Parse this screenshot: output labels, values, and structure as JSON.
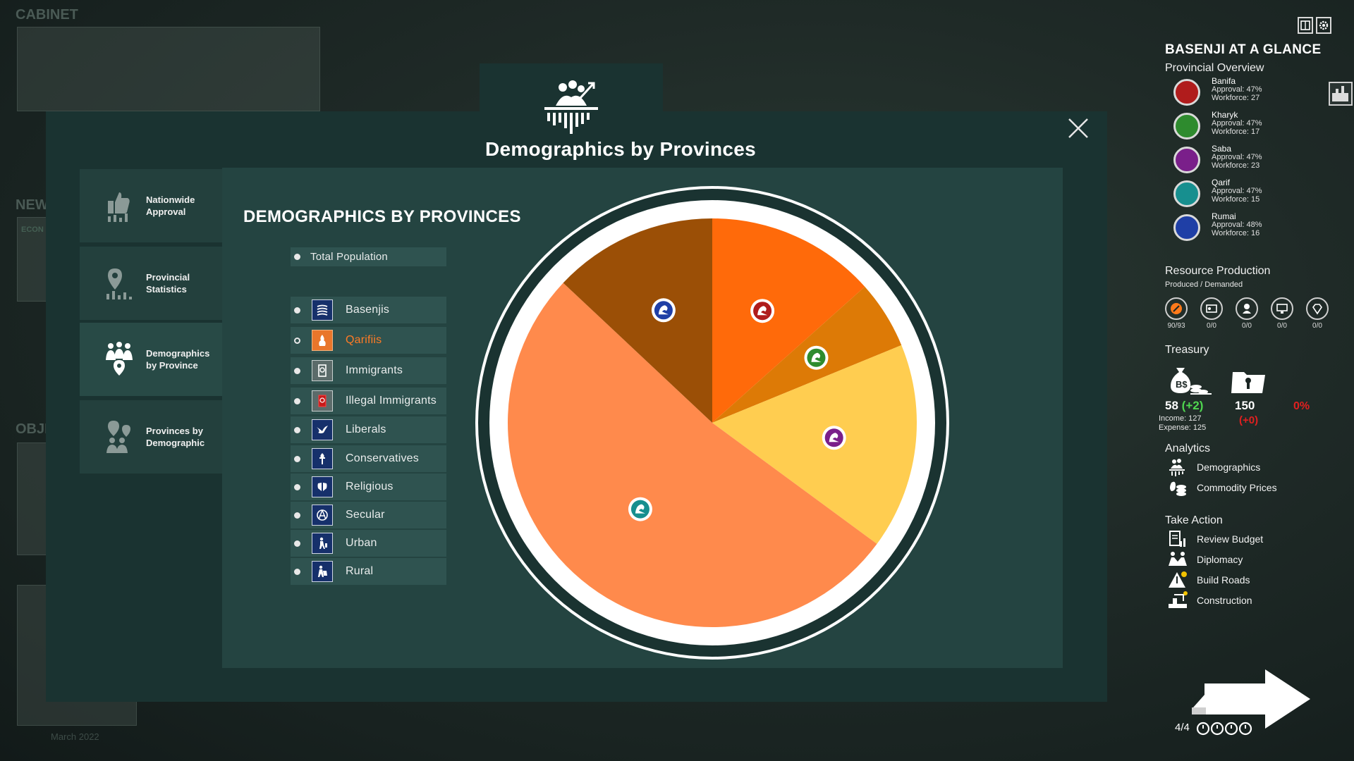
{
  "background": {
    "cabinet_label": "CABINET",
    "news_label": "NEW",
    "econ_label": "ECON",
    "objectives_label": "OBJE",
    "date": "March 2022"
  },
  "modal": {
    "title": "Demographics by Provinces",
    "heading": "DEMOGRAPHICS BY PROVINCES",
    "close_icon": "close-icon"
  },
  "nav": [
    {
      "label1": "Nationwide",
      "label2": "Approval",
      "icon": "approval-icon"
    },
    {
      "label1": "Provincial",
      "label2": "Statistics",
      "icon": "map-pin-chart-icon"
    },
    {
      "label1": "Demographics",
      "label2": "by Province",
      "icon": "people-pin-icon"
    },
    {
      "label1": "Provinces by",
      "label2": "Demographic",
      "icon": "pins-people-icon"
    }
  ],
  "legend": {
    "total": "Total Population",
    "items": [
      {
        "label": "Basenjis",
        "icon": "basenji-flag-icon"
      },
      {
        "label": "Qarifiis",
        "icon": "qarifi-flag-icon",
        "selected": true
      },
      {
        "label": "Immigrants",
        "icon": "passport-icon"
      },
      {
        "label": "Illegal Immigrants",
        "icon": "illegal-passport-icon"
      },
      {
        "label": "Liberals",
        "icon": "dove-icon"
      },
      {
        "label": "Conservatives",
        "icon": "torch-icon"
      },
      {
        "label": "Religious",
        "icon": "praying-hands-icon"
      },
      {
        "label": "Secular",
        "icon": "atheism-icon"
      },
      {
        "label": "Urban",
        "icon": "city-person-icon"
      },
      {
        "label": "Rural",
        "icon": "farmer-icon"
      }
    ]
  },
  "chart_data": {
    "type": "pie",
    "title": "",
    "slices": [
      {
        "province": "Banifa",
        "value": 13.4,
        "color": "#ff6a0a",
        "emblem_color": "#b01c1c"
      },
      {
        "province": "Kharyk",
        "value": 5.4,
        "color": "#dd7a06",
        "emblem_color": "#2e8b2e"
      },
      {
        "province": "Saba",
        "value": 16.3,
        "color": "#ffcd50",
        "emblem_color": "#7a1f8a"
      },
      {
        "province": "Qarif",
        "value": 51.9,
        "color": "#ff8a4c",
        "emblem_color": "#178f8f"
      },
      {
        "province": "Rumai",
        "value": 13.0,
        "color": "#9b4f06",
        "emblem_color": "#1f3fa6"
      }
    ]
  },
  "sidebar": {
    "title": "BASENJI AT A GLANCE",
    "provincial_overview": "Provincial Overview",
    "provinces": [
      {
        "name": "Banifa",
        "approval": "Approval: 47%",
        "workforce": "Workforce: 27",
        "color": "#b01c1c"
      },
      {
        "name": "Kharyk",
        "approval": "Approval: 47%",
        "workforce": "Workforce: 17",
        "color": "#2e8b2e"
      },
      {
        "name": "Saba",
        "approval": "Approval: 47%",
        "workforce": "Workforce: 23",
        "color": "#7a1f8a"
      },
      {
        "name": "Qarif",
        "approval": "Approval: 47%",
        "workforce": "Workforce: 15",
        "color": "#178f8f"
      },
      {
        "name": "Rumai",
        "approval": "Approval: 48%",
        "workforce": "Workforce: 16",
        "color": "#1f3fa6"
      }
    ],
    "resource_title": "Resource Production",
    "resource_sub": "Produced / Demanded",
    "resources": [
      {
        "icon": "oil-icon",
        "value": "90/93"
      },
      {
        "icon": "id-card-icon",
        "value": "0/0"
      },
      {
        "icon": "worker-icon",
        "value": "0/0"
      },
      {
        "icon": "monitor-icon",
        "value": "0/0"
      },
      {
        "icon": "diamond-icon",
        "value": "0/0"
      }
    ],
    "treasury_title": "Treasury",
    "treasury": {
      "money": "58",
      "money_delta": "(+2)",
      "income": "Income: 127",
      "expense": "Expense: 125",
      "influence": "150",
      "influence_delta": "(+0)",
      "rate": "0%"
    },
    "analytics_title": "Analytics",
    "analytics": [
      {
        "label": "Demographics",
        "icon": "demographics-icon"
      },
      {
        "label": "Commodity Prices",
        "icon": "commodity-icon"
      }
    ],
    "action_title": "Take Action",
    "actions": [
      {
        "label": "Review Budget",
        "icon": "budget-icon"
      },
      {
        "label": "Diplomacy",
        "icon": "diplomacy-icon"
      },
      {
        "label": "Build Roads",
        "icon": "road-icon"
      },
      {
        "label": "Construction",
        "icon": "construction-icon"
      }
    ],
    "turn": "4/4"
  }
}
